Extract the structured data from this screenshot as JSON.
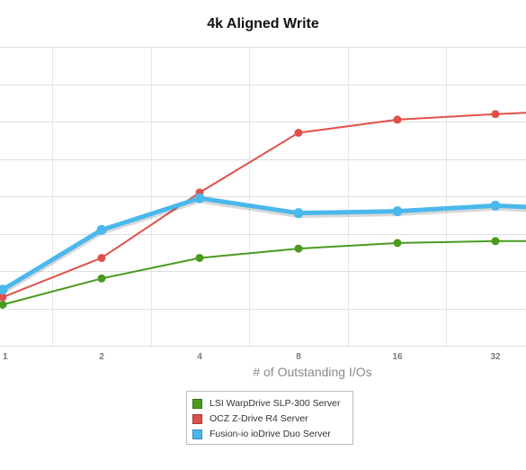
{
  "chart_data": {
    "type": "line",
    "title": "4k Aligned Write",
    "xlabel": "# of Outstanding I/Os",
    "ylabel": "",
    "categories": [
      "1",
      "2",
      "4",
      "8",
      "16",
      "32"
    ],
    "ylim": [
      0,
      8
    ],
    "grid": true,
    "legend_placement": "bottom-center",
    "series": [
      {
        "name": "LSI WarpDrive SLP-300 Server",
        "color": "#4a9a1e",
        "values": [
          1.1,
          1.8,
          2.35,
          2.6,
          2.75,
          2.8
        ]
      },
      {
        "name": "OCZ Z-Drive R4 Server",
        "color": "#e0504a",
        "values": [
          1.3,
          2.35,
          4.1,
          5.7,
          6.05,
          6.2
        ]
      },
      {
        "name": "Fusion-io ioDrive Duo Server",
        "color": "#4bb8ec",
        "values": [
          1.5,
          3.1,
          3.95,
          3.55,
          3.6,
          3.75
        ]
      }
    ],
    "last_point_partial": [
      2.8,
      6.25,
      3.7
    ]
  }
}
